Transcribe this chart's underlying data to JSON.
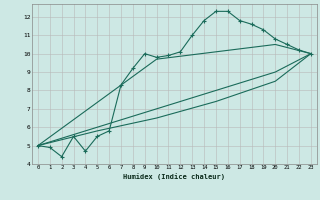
{
  "xlabel": "Humidex (Indice chaleur)",
  "bg_color": "#cde8e4",
  "grid_color": "#b8b8b8",
  "line_color": "#1a6b5a",
  "xlim": [
    -0.5,
    23.5
  ],
  "ylim": [
    4.0,
    12.7
  ],
  "xticks": [
    0,
    1,
    2,
    3,
    4,
    5,
    6,
    7,
    8,
    9,
    10,
    11,
    12,
    13,
    14,
    15,
    16,
    17,
    18,
    19,
    20,
    21,
    22,
    23
  ],
  "yticks": [
    4,
    5,
    6,
    7,
    8,
    9,
    10,
    11,
    12
  ],
  "series1": [
    [
      0,
      5.0
    ],
    [
      1,
      4.9
    ],
    [
      2,
      4.4
    ],
    [
      3,
      5.5
    ],
    [
      4,
      4.7
    ],
    [
      5,
      5.5
    ],
    [
      6,
      5.8
    ],
    [
      7,
      8.3
    ],
    [
      8,
      9.2
    ],
    [
      9,
      10.0
    ],
    [
      10,
      9.8
    ],
    [
      11,
      9.9
    ],
    [
      12,
      10.1
    ],
    [
      13,
      11.0
    ],
    [
      14,
      11.8
    ],
    [
      15,
      12.3
    ],
    [
      16,
      12.3
    ],
    [
      17,
      11.8
    ],
    [
      18,
      11.6
    ],
    [
      19,
      11.3
    ],
    [
      20,
      10.8
    ],
    [
      21,
      10.5
    ],
    [
      22,
      10.2
    ],
    [
      23,
      10.0
    ]
  ],
  "series2": [
    [
      0,
      5.0
    ],
    [
      5,
      6.0
    ],
    [
      10,
      7.0
    ],
    [
      15,
      8.0
    ],
    [
      20,
      9.0
    ],
    [
      23,
      10.0
    ]
  ],
  "series3": [
    [
      0,
      5.0
    ],
    [
      5,
      5.8
    ],
    [
      10,
      6.5
    ],
    [
      15,
      7.4
    ],
    [
      20,
      8.5
    ],
    [
      23,
      10.0
    ]
  ],
  "series4": [
    [
      0,
      5.0
    ],
    [
      10,
      9.7
    ],
    [
      15,
      10.1
    ],
    [
      20,
      10.5
    ],
    [
      23,
      10.0
    ]
  ]
}
